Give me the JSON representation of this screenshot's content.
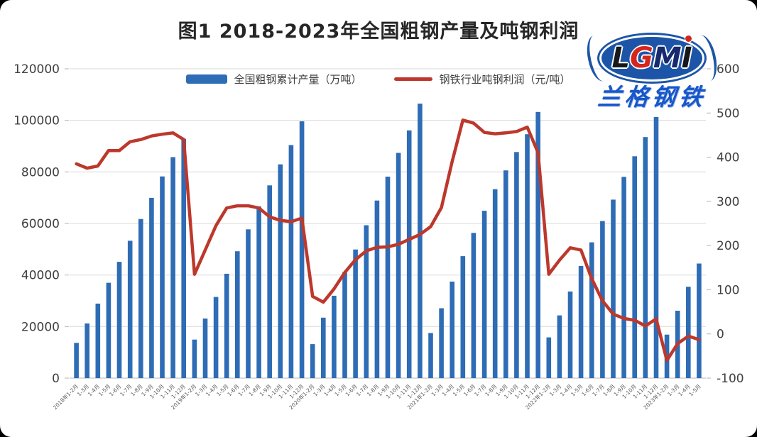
{
  "title": "图1 2018-2023年全国粗钢产量及吨钢利润",
  "logo": {
    "letters": [
      "L",
      "G",
      "M",
      "I"
    ],
    "subtext": "兰格钢铁",
    "oval_color": "#1c55a7",
    "cn_color": "#1757c9"
  },
  "chart_data": {
    "type": "combo",
    "title": "图1 2018-2023年全国粗钢产量及吨钢利润",
    "legend_position": "top-center",
    "grid": "horizontal gridlines at left-axis ticks",
    "categories": [
      "2018年1-2月",
      "1-3月",
      "1-4月",
      "1-5月",
      "1-6月",
      "1-7月",
      "1-8月",
      "1-9月",
      "1-10月",
      "1-11月",
      "1-12月",
      "2019年1-2月",
      "1-3月",
      "1-4月",
      "1-5月",
      "1-6月",
      "1-7月",
      "1-8月",
      "1-9月",
      "1-10月",
      "1-11月",
      "1-12月",
      "2020年1-2月",
      "1-3月",
      "1-4月",
      "1-5月",
      "1-6月",
      "1-7月",
      "1-8月",
      "1-9月",
      "1-10月",
      "1-11月",
      "1-12月",
      "2021年1-2月",
      "1-3月",
      "1-4月",
      "1-5月",
      "1-6月",
      "1-7月",
      "1-8月",
      "1-9月",
      "1-10月",
      "1-11月",
      "1-12月",
      "2022年1-2月",
      "1-3月",
      "1-4月",
      "1-5月",
      "1-6月",
      "1-7月",
      "1-8月",
      "1-9月",
      "1-10月",
      "1-11月",
      "1-12月",
      "2023年1-2月",
      "1-3月",
      "1-4月",
      "1-5月"
    ],
    "series": [
      {
        "name": "全国粗钢累计产量（万吨）",
        "type": "bar",
        "axis": "left",
        "color": "#2e6cb5",
        "values": [
          13682,
          21215,
          28897,
          36986,
          45116,
          53285,
          61743,
          69942,
          78246,
          85737,
          92826,
          14958,
          23107,
          31496,
          40488,
          49217,
          57706,
          66629,
          74782,
          82922,
          90418,
          99634,
          13170,
          23445,
          31946,
          41175,
          49901,
          59317,
          68889,
          78159,
          87393,
          96116,
          106477,
          17499,
          27104,
          37456,
          47310,
          56333,
          64933,
          73302,
          80589,
          87705,
          94636,
          103279,
          15796,
          24338,
          33615,
          43502,
          52688,
          60928,
          69257,
          78083,
          86057,
          93511,
          101300,
          16870,
          26156,
          35439,
          44463
        ]
      },
      {
        "name": "钢铁行业吨钢利润（元/吨）",
        "type": "line",
        "axis": "right",
        "color": "#bd382c",
        "values": [
          385,
          375,
          380,
          415,
          415,
          435,
          440,
          448,
          452,
          455,
          440,
          135,
          190,
          245,
          285,
          290,
          290,
          285,
          265,
          257,
          254,
          262,
          85,
          72,
          102,
          139,
          168,
          188,
          196,
          197,
          203,
          214,
          225,
          243,
          286,
          390,
          484,
          477,
          456,
          453,
          455,
          458,
          468,
          410,
          135,
          167,
          195,
          190,
          125,
          75,
          45,
          35,
          31,
          18,
          34,
          -60,
          -22,
          -5,
          -13
        ]
      }
    ],
    "left_axis": {
      "min": 0,
      "max": 120000,
      "step": 20000,
      "ticks": [
        "0",
        "20000",
        "40000",
        "60000",
        "80000",
        "100000",
        "120000"
      ]
    },
    "right_axis": {
      "min": -100,
      "max": 600,
      "step": 100,
      "ticks": [
        "-100",
        "0",
        "100",
        "200",
        "300",
        "400",
        "500",
        "600"
      ]
    }
  }
}
